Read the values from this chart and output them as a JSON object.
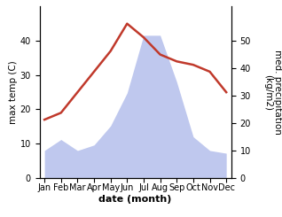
{
  "months": [
    "Jan",
    "Feb",
    "Mar",
    "Apr",
    "May",
    "Jun",
    "Jul",
    "Aug",
    "Sep",
    "Oct",
    "Nov",
    "Dec"
  ],
  "month_indices": [
    0,
    1,
    2,
    3,
    4,
    5,
    6,
    7,
    8,
    9,
    10,
    11
  ],
  "temperature": [
    17,
    19,
    25,
    31,
    37,
    45,
    41,
    36,
    34,
    33,
    31,
    25
  ],
  "precipitation": [
    10,
    14,
    10,
    12,
    19,
    31,
    52,
    52,
    35,
    15,
    10,
    9
  ],
  "temp_color": "#c0392b",
  "precip_fill_color": "#bfc8ee",
  "temp_ylim": [
    0,
    50
  ],
  "precip_ylim": [
    0,
    62.5
  ],
  "temp_yticks": [
    0,
    10,
    20,
    30,
    40
  ],
  "precip_yticks": [
    0,
    10,
    20,
    30,
    40,
    50
  ],
  "xlabel": "date (month)",
  "ylabel_left": "max temp (C)",
  "ylabel_right": "med. precipitation\n(kg/m2)",
  "xlabel_fontsize": 8,
  "ylabel_fontsize": 7.5,
  "tick_fontsize": 7
}
